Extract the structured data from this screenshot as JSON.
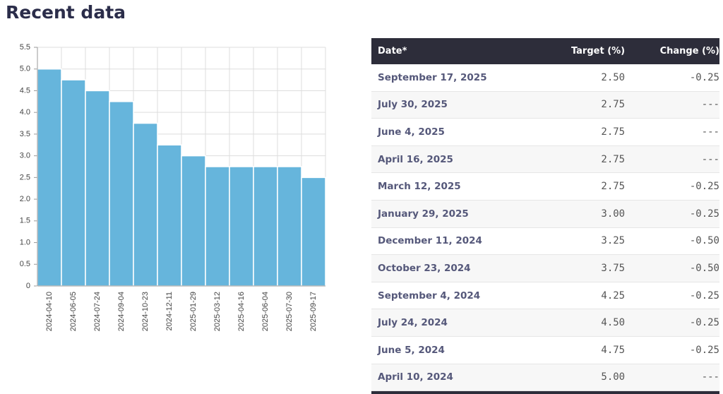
{
  "header": {
    "title": "Recent data"
  },
  "chart_data": {
    "type": "bar",
    "categories": [
      "2024-04-10",
      "2024-06-05",
      "2024-07-24",
      "2024-09-04",
      "2024-10-23",
      "2024-12-11",
      "2025-01-29",
      "2025-03-12",
      "2025-04-16",
      "2025-06-04",
      "2025-07-30",
      "2025-09-17"
    ],
    "values": [
      5.0,
      4.75,
      4.5,
      4.25,
      3.75,
      3.25,
      3.0,
      2.75,
      2.75,
      2.75,
      2.75,
      2.5
    ],
    "color": "#66b5dc",
    "ylim": [
      0,
      5.5
    ],
    "yticks": [
      0,
      0.5,
      {
        "value": 1,
        "label": "1.0"
      },
      1.5,
      {
        "value": 2,
        "label": "2.0"
      },
      2.5,
      {
        "value": 3,
        "label": "3.0"
      },
      3.5,
      {
        "value": 4,
        "label": "4.0"
      },
      4.5,
      {
        "value": 5,
        "label": "5.0"
      },
      5.5
    ],
    "grid": true
  },
  "table": {
    "header": [
      "Date*",
      "Target (%)",
      "Change (%)"
    ],
    "rows": [
      [
        "September 17, 2025",
        "2.50",
        "-0.25"
      ],
      [
        "July 30, 2025",
        "2.75",
        "---"
      ],
      [
        "June 4, 2025",
        "2.75",
        "---"
      ],
      [
        "April 16, 2025",
        "2.75",
        "---"
      ],
      [
        "March 12, 2025",
        "2.75",
        "-0.25"
      ],
      [
        "January 29, 2025",
        "3.00",
        "-0.25"
      ],
      [
        "December 11, 2024",
        "3.25",
        "-0.50"
      ],
      [
        "October 23, 2024",
        "3.75",
        "-0.50"
      ],
      [
        "September 4, 2024",
        "4.25",
        "-0.25"
      ],
      [
        "July 24, 2024",
        "4.50",
        "-0.25"
      ],
      [
        "June 5, 2024",
        "4.75",
        "-0.25"
      ],
      [
        "April 10, 2024",
        "5.00",
        "---"
      ]
    ]
  }
}
